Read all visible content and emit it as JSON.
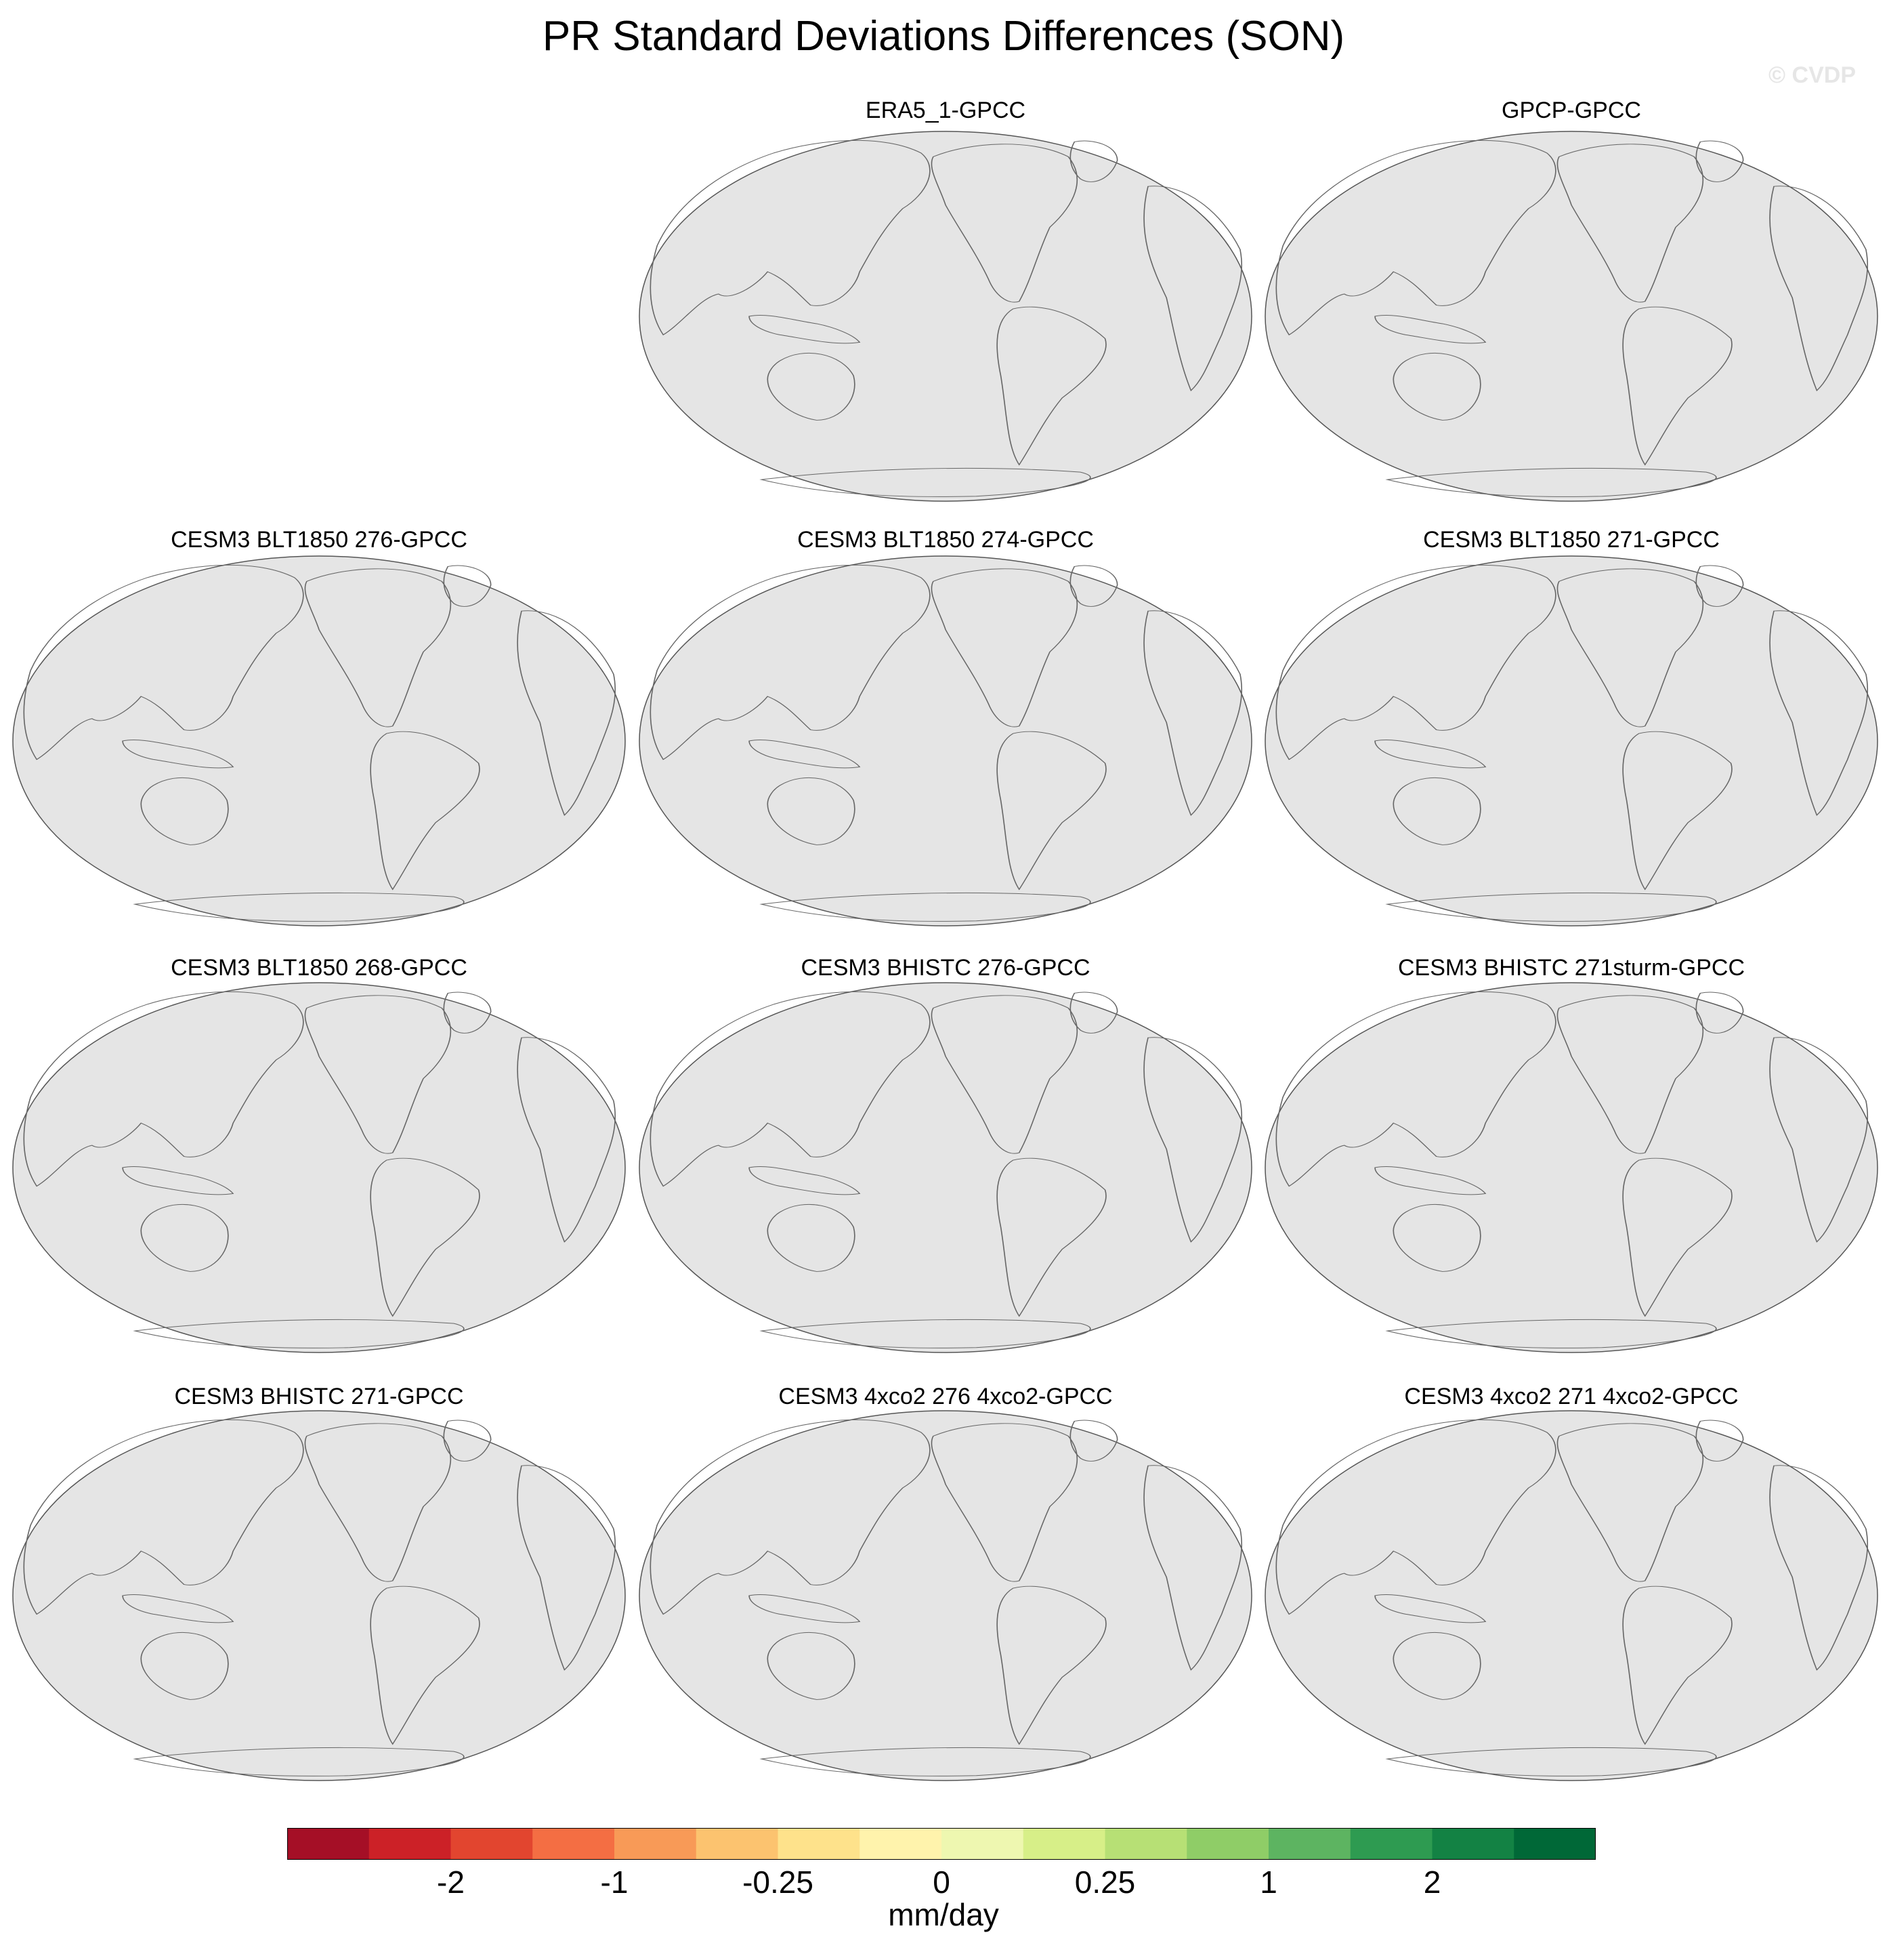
{
  "title": "PR Standard Deviations Differences (SON)",
  "watermark": "© CVDP",
  "panels": [
    {
      "label": "ERA5_1-GPCC"
    },
    {
      "label": "GPCP-GPCC"
    },
    {
      "label": "CESM3 BLT1850 276-GPCC"
    },
    {
      "label": "CESM3 BLT1850 274-GPCC"
    },
    {
      "label": "CESM3 BLT1850 271-GPCC"
    },
    {
      "label": "CESM3 BLT1850 268-GPCC"
    },
    {
      "label": "CESM3 BHISTC 276-GPCC"
    },
    {
      "label": "CESM3 BHISTC 271sturm-GPCC"
    },
    {
      "label": "CESM3 BHISTC 271-GPCC"
    },
    {
      "label": "CESM3 4xco2 276 4xco2-GPCC"
    },
    {
      "label": "CESM3 4xco2 271 4xco2-GPCC"
    }
  ],
  "colorbar": {
    "units": "mm/day",
    "tick_labels": [
      "-2",
      "-1",
      "-0.25",
      "0",
      "0.25",
      "1",
      "2"
    ],
    "colors": [
      "#a50f26",
      "#cc2127",
      "#e2452f",
      "#f46e43",
      "#f89a57",
      "#fcc36f",
      "#fee28b",
      "#fff3ac",
      "#eef7b0",
      "#d7ef88",
      "#b7e075",
      "#8fcd67",
      "#5db461",
      "#2e9b51",
      "#138244",
      "#006837"
    ],
    "ocean_color": "#e5e5e5"
  }
}
